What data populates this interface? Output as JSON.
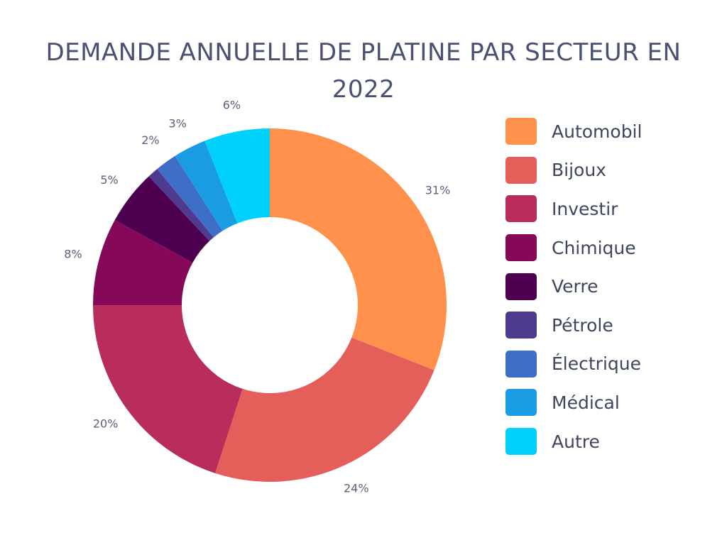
{
  "chart_data": {
    "type": "pie",
    "variant": "donut",
    "title": "DEMANDE ANNUELLE DE PLATINE PAR SECTEUR EN 2022",
    "unit": "%",
    "legend_position": "right",
    "series": [
      {
        "name": "Automobil",
        "value": 31,
        "label": "31%",
        "color": "#FF914D"
      },
      {
        "name": "Bijoux",
        "value": 24,
        "label": "24%",
        "color": "#E45F5A"
      },
      {
        "name": "Investir",
        "value": 20,
        "label": "20%",
        "color": "#B82D5C"
      },
      {
        "name": "Chimique",
        "value": 8,
        "label": "8%",
        "color": "#850958"
      },
      {
        "name": "Verre",
        "value": 5,
        "label": "5%",
        "color": "#4E0050"
      },
      {
        "name": "Pétrole",
        "value": 1,
        "label": "",
        "color": "#4E3A8E"
      },
      {
        "name": "Électrique",
        "value": 2,
        "label": "2%",
        "color": "#3F6EC7"
      },
      {
        "name": "Médical",
        "value": 3,
        "label": "3%",
        "color": "#1A9CE4"
      },
      {
        "name": "Autre",
        "value": 6,
        "label": "6%",
        "color": "#00D0FC"
      }
    ]
  }
}
